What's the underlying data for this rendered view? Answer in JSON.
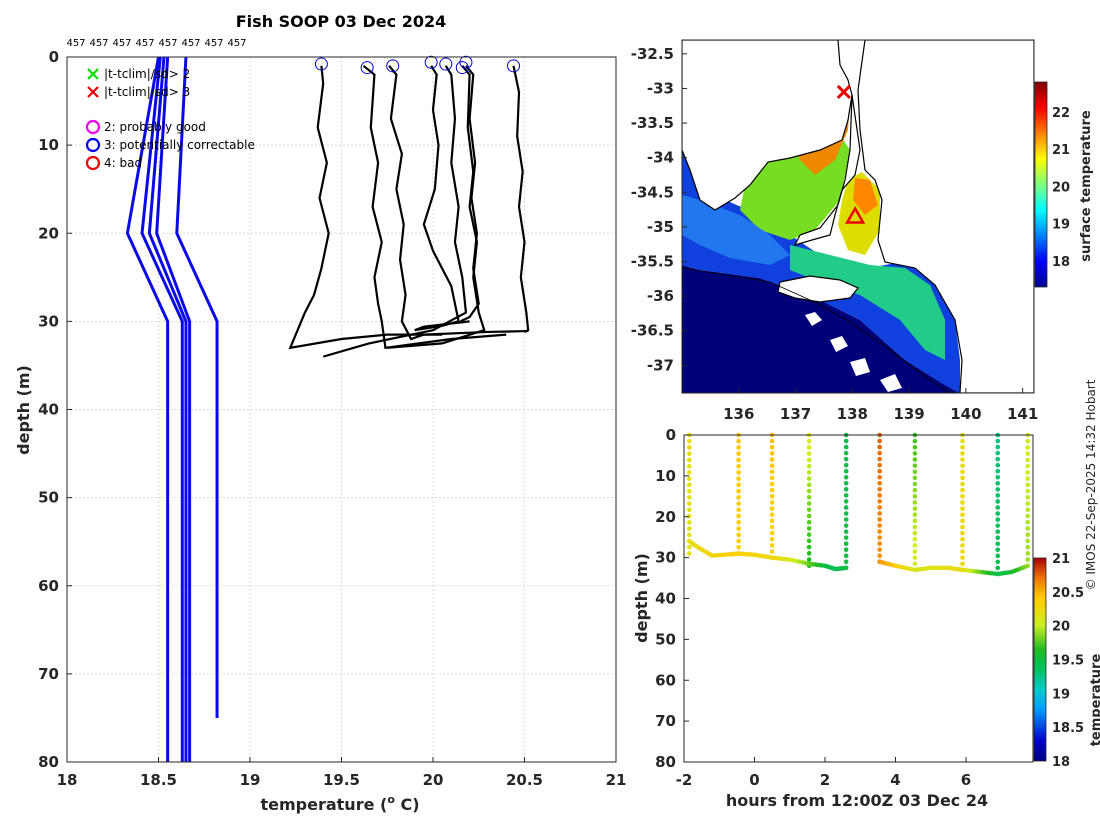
{
  "credit": "© IMOS 22-Sep-2025 14:32 Hobart",
  "chart_data": [
    {
      "id": "profiles",
      "type": "line",
      "title": "Fish SOOP 03 Dec 2024",
      "xlabel": "temperature (",
      "xlabel_sup": "o",
      "xlabel_end": " C)",
      "ylabel": "depth (m)",
      "xlim": [
        18,
        21
      ],
      "ylim": [
        0,
        80
      ],
      "xticks": [
        "18",
        "18.5",
        "19",
        "19.5",
        "20",
        "20.5",
        "21"
      ],
      "yticks": [
        "0",
        "10",
        "20",
        "30",
        "40",
        "50",
        "60",
        "70",
        "80"
      ],
      "top_labels": [
        "457",
        "457",
        "457",
        "457",
        "457",
        "457",
        "457",
        "457"
      ],
      "legend": [
        {
          "label": "|t-tclim|/sd> 2",
          "marker": "x",
          "color": "#00dd00"
        },
        {
          "label": "|t-tclim|/sd> 3",
          "marker": "x",
          "color": "#ee0000"
        },
        {
          "label": "2: probably good",
          "marker": "o",
          "color": "#ee00ee"
        },
        {
          "label": "3: potentially correctable",
          "marker": "o",
          "color": "#0000ee"
        },
        {
          "label": "4: bad",
          "marker": "o",
          "color": "#ee0000"
        }
      ],
      "climatology_series": [
        {
          "name": "clim-1",
          "t": [
            18.5,
            18.33,
            18.55,
            18.55
          ],
          "depth": [
            0,
            20,
            30,
            80
          ]
        },
        {
          "name": "clim-2",
          "t": [
            18.51,
            18.41,
            18.63,
            18.63
          ],
          "depth": [
            0,
            20,
            30,
            80
          ]
        },
        {
          "name": "clim-3",
          "t": [
            18.53,
            18.45,
            18.65,
            18.65
          ],
          "depth": [
            0,
            20,
            30,
            80
          ]
        },
        {
          "name": "clim-4",
          "t": [
            18.55,
            18.49,
            18.67,
            18.67
          ],
          "depth": [
            0,
            20,
            30,
            80
          ]
        },
        {
          "name": "clim-5",
          "t": [
            18.65,
            18.6,
            18.82,
            18.82
          ],
          "depth": [
            0,
            20,
            30,
            75
          ]
        }
      ],
      "profiles": [
        {
          "name": "profile-1",
          "t": [
            19.39,
            19.4,
            19.37,
            19.42,
            19.38,
            19.43,
            19.39,
            19.35,
            19.3,
            19.22,
            19.5,
            19.75,
            20.05
          ],
          "depth": [
            1,
            3,
            8,
            12,
            16,
            20,
            24,
            27,
            29,
            33,
            32,
            31.5,
            31.5
          ]
        },
        {
          "name": "profile-2",
          "t": [
            19.62,
            19.68,
            19.66,
            19.7,
            19.67,
            19.72,
            19.68,
            19.7,
            19.72,
            19.74,
            20.1,
            20.4
          ],
          "depth": [
            1,
            2,
            8,
            12,
            17,
            21,
            25,
            28,
            30,
            33,
            32,
            31.5
          ]
        },
        {
          "name": "profile-3",
          "t": [
            19.76,
            19.8,
            19.77,
            19.83,
            19.8,
            19.84,
            19.82,
            19.85,
            19.83,
            19.88,
            19.95,
            20.3,
            20.52
          ],
          "depth": [
            1,
            2,
            7,
            11,
            15,
            19,
            23,
            27,
            30,
            32,
            31.5,
            31.2,
            31.1
          ]
        },
        {
          "name": "profile-4",
          "t": [
            19.99,
            20.02,
            20.0,
            20.03,
            20.01,
            19.95,
            20.0,
            20.1,
            20.14,
            20.05,
            19.9,
            19.95,
            20.2
          ],
          "depth": [
            1,
            2,
            6,
            10,
            15,
            19,
            22,
            26,
            30,
            30.5,
            31,
            30.6,
            30
          ]
        },
        {
          "name": "profile-5",
          "t": [
            20.07,
            20.1,
            20.12,
            20.1,
            20.14,
            20.12,
            20.16,
            20.18,
            20.0,
            19.65,
            19.4
          ],
          "depth": [
            1,
            2,
            7,
            12,
            17,
            21,
            25,
            29,
            31,
            32.5,
            34
          ]
        },
        {
          "name": "profile-6",
          "t": [
            20.16,
            20.2,
            20.19,
            20.22,
            20.2,
            20.24,
            20.22,
            20.25,
            20.28,
            20.05,
            19.75
          ],
          "depth": [
            1,
            2,
            8,
            13,
            17,
            21,
            25,
            29,
            31,
            32.5,
            33
          ]
        },
        {
          "name": "profile-7",
          "t": [
            20.18,
            20.22,
            20.2,
            20.23,
            20.21,
            20.24,
            20.22,
            20.25,
            20.2,
            20.15
          ],
          "depth": [
            1,
            2,
            7,
            12,
            16,
            20,
            24,
            28,
            29.5,
            30
          ]
        },
        {
          "name": "profile-8",
          "t": [
            20.44,
            20.47,
            20.46,
            20.49,
            20.47,
            20.5,
            20.48,
            20.51,
            20.52,
            20.5
          ],
          "depth": [
            1,
            4,
            9,
            13,
            17,
            21,
            25,
            29,
            31,
            31.2
          ]
        }
      ],
      "qc_flags": [
        {
          "t": 19.39,
          "depth": 0.8
        },
        {
          "t": 19.64,
          "depth": 1.2
        },
        {
          "t": 19.78,
          "depth": 1.0
        },
        {
          "t": 19.99,
          "depth": 0.6
        },
        {
          "t": 20.07,
          "depth": 0.8
        },
        {
          "t": 20.16,
          "depth": 1.2
        },
        {
          "t": 20.18,
          "depth": 0.6
        },
        {
          "t": 20.44,
          "depth": 1.0
        }
      ]
    },
    {
      "id": "sst-map",
      "type": "heatmap",
      "title": "",
      "xlim": [
        135,
        141.2
      ],
      "ylim": [
        -37.4,
        -32.3
      ],
      "xticks": [
        "136",
        "137",
        "138",
        "139",
        "140",
        "141"
      ],
      "yticks": [
        "-32.5",
        "-33",
        "-33.5",
        "-34",
        "-34.5",
        "-35",
        "-35.5",
        "-36",
        "-36.5",
        "-37"
      ],
      "colorbar_label": "surface temperature",
      "colorbar_range": [
        17.3,
        22.8
      ],
      "colorbar_ticks": [
        "18",
        "19",
        "20",
        "21",
        "22"
      ],
      "track_markers": [
        {
          "lon": 137.85,
          "lat": -33.05,
          "marker": "x",
          "color": "#ee0000"
        },
        {
          "lon": 138.05,
          "lat": -34.85,
          "marker": "triangle",
          "color": "#ee0000"
        }
      ]
    },
    {
      "id": "section",
      "type": "scatter",
      "xlabel": "hours from 12:00Z 03 Dec 24",
      "ylabel": "depth (m)",
      "xlim": [
        -2,
        7.9
      ],
      "ylim": [
        0,
        80
      ],
      "xticks": [
        "-2",
        "0",
        "2",
        "4",
        "6"
      ],
      "yticks": [
        "0",
        "10",
        "20",
        "30",
        "40",
        "50",
        "60",
        "70",
        "80"
      ],
      "colorbar_range": [
        18,
        21
      ],
      "colorbar_ticks": [
        "18",
        "18.5",
        "19",
        "19.5",
        "20",
        "20.5",
        "21"
      ],
      "colorbar_label": "temperature",
      "casts": [
        {
          "hour": -1.85,
          "bottom": 29,
          "t_top": 20.2,
          "t_bottom": 20.15
        },
        {
          "hour": -0.45,
          "bottom": 29,
          "t_top": 20.42,
          "t_bottom": 20.35
        },
        {
          "hour": 0.5,
          "bottom": 30,
          "t_top": 20.45,
          "t_bottom": 20.3
        },
        {
          "hour": 1.55,
          "bottom": 32,
          "t_top": 20.1,
          "t_bottom": 19.6
        },
        {
          "hour": 2.6,
          "bottom": 32.5,
          "t_top": 19.45,
          "t_bottom": 19.5
        },
        {
          "hour": 3.55,
          "bottom": 31,
          "t_top": 20.75,
          "t_bottom": 20.6
        },
        {
          "hour": 4.55,
          "bottom": 33,
          "t_top": 19.7,
          "t_bottom": 20.1
        },
        {
          "hour": 5.9,
          "bottom": 33,
          "t_top": 20.2,
          "t_bottom": 20.25
        },
        {
          "hour": 6.9,
          "bottom": 34,
          "t_top": 19.25,
          "t_bottom": 19.45
        },
        {
          "hour": 7.75,
          "bottom": 32,
          "t_top": 20.05,
          "t_bottom": 19.9
        }
      ],
      "bottom_track": {
        "hour": [
          -1.85,
          -1.6,
          -1.2,
          -0.7,
          -0.45,
          0.0,
          0.5,
          1.0,
          1.55,
          2.0,
          2.3,
          2.6
        ],
        "depth": [
          26,
          27.5,
          29.5,
          29.2,
          29,
          29.3,
          30,
          30.5,
          31.5,
          32,
          32.8,
          32.5
        ],
        "temp": [
          20.2,
          20.25,
          20.3,
          20.35,
          20.35,
          20.3,
          20.3,
          20.1,
          19.8,
          19.5,
          19.4,
          19.5
        ]
      },
      "bottom_track_2": {
        "hour": [
          3.55,
          4.0,
          4.55,
          5.0,
          5.5,
          5.9,
          6.4,
          6.9,
          7.3,
          7.75
        ],
        "depth": [
          31,
          32,
          33,
          32.5,
          32.5,
          33,
          33.5,
          34,
          33.5,
          32
        ],
        "temp": [
          20.6,
          20.4,
          20.1,
          20.15,
          20.2,
          20.2,
          19.8,
          19.45,
          19.55,
          19.9
        ]
      }
    }
  ]
}
